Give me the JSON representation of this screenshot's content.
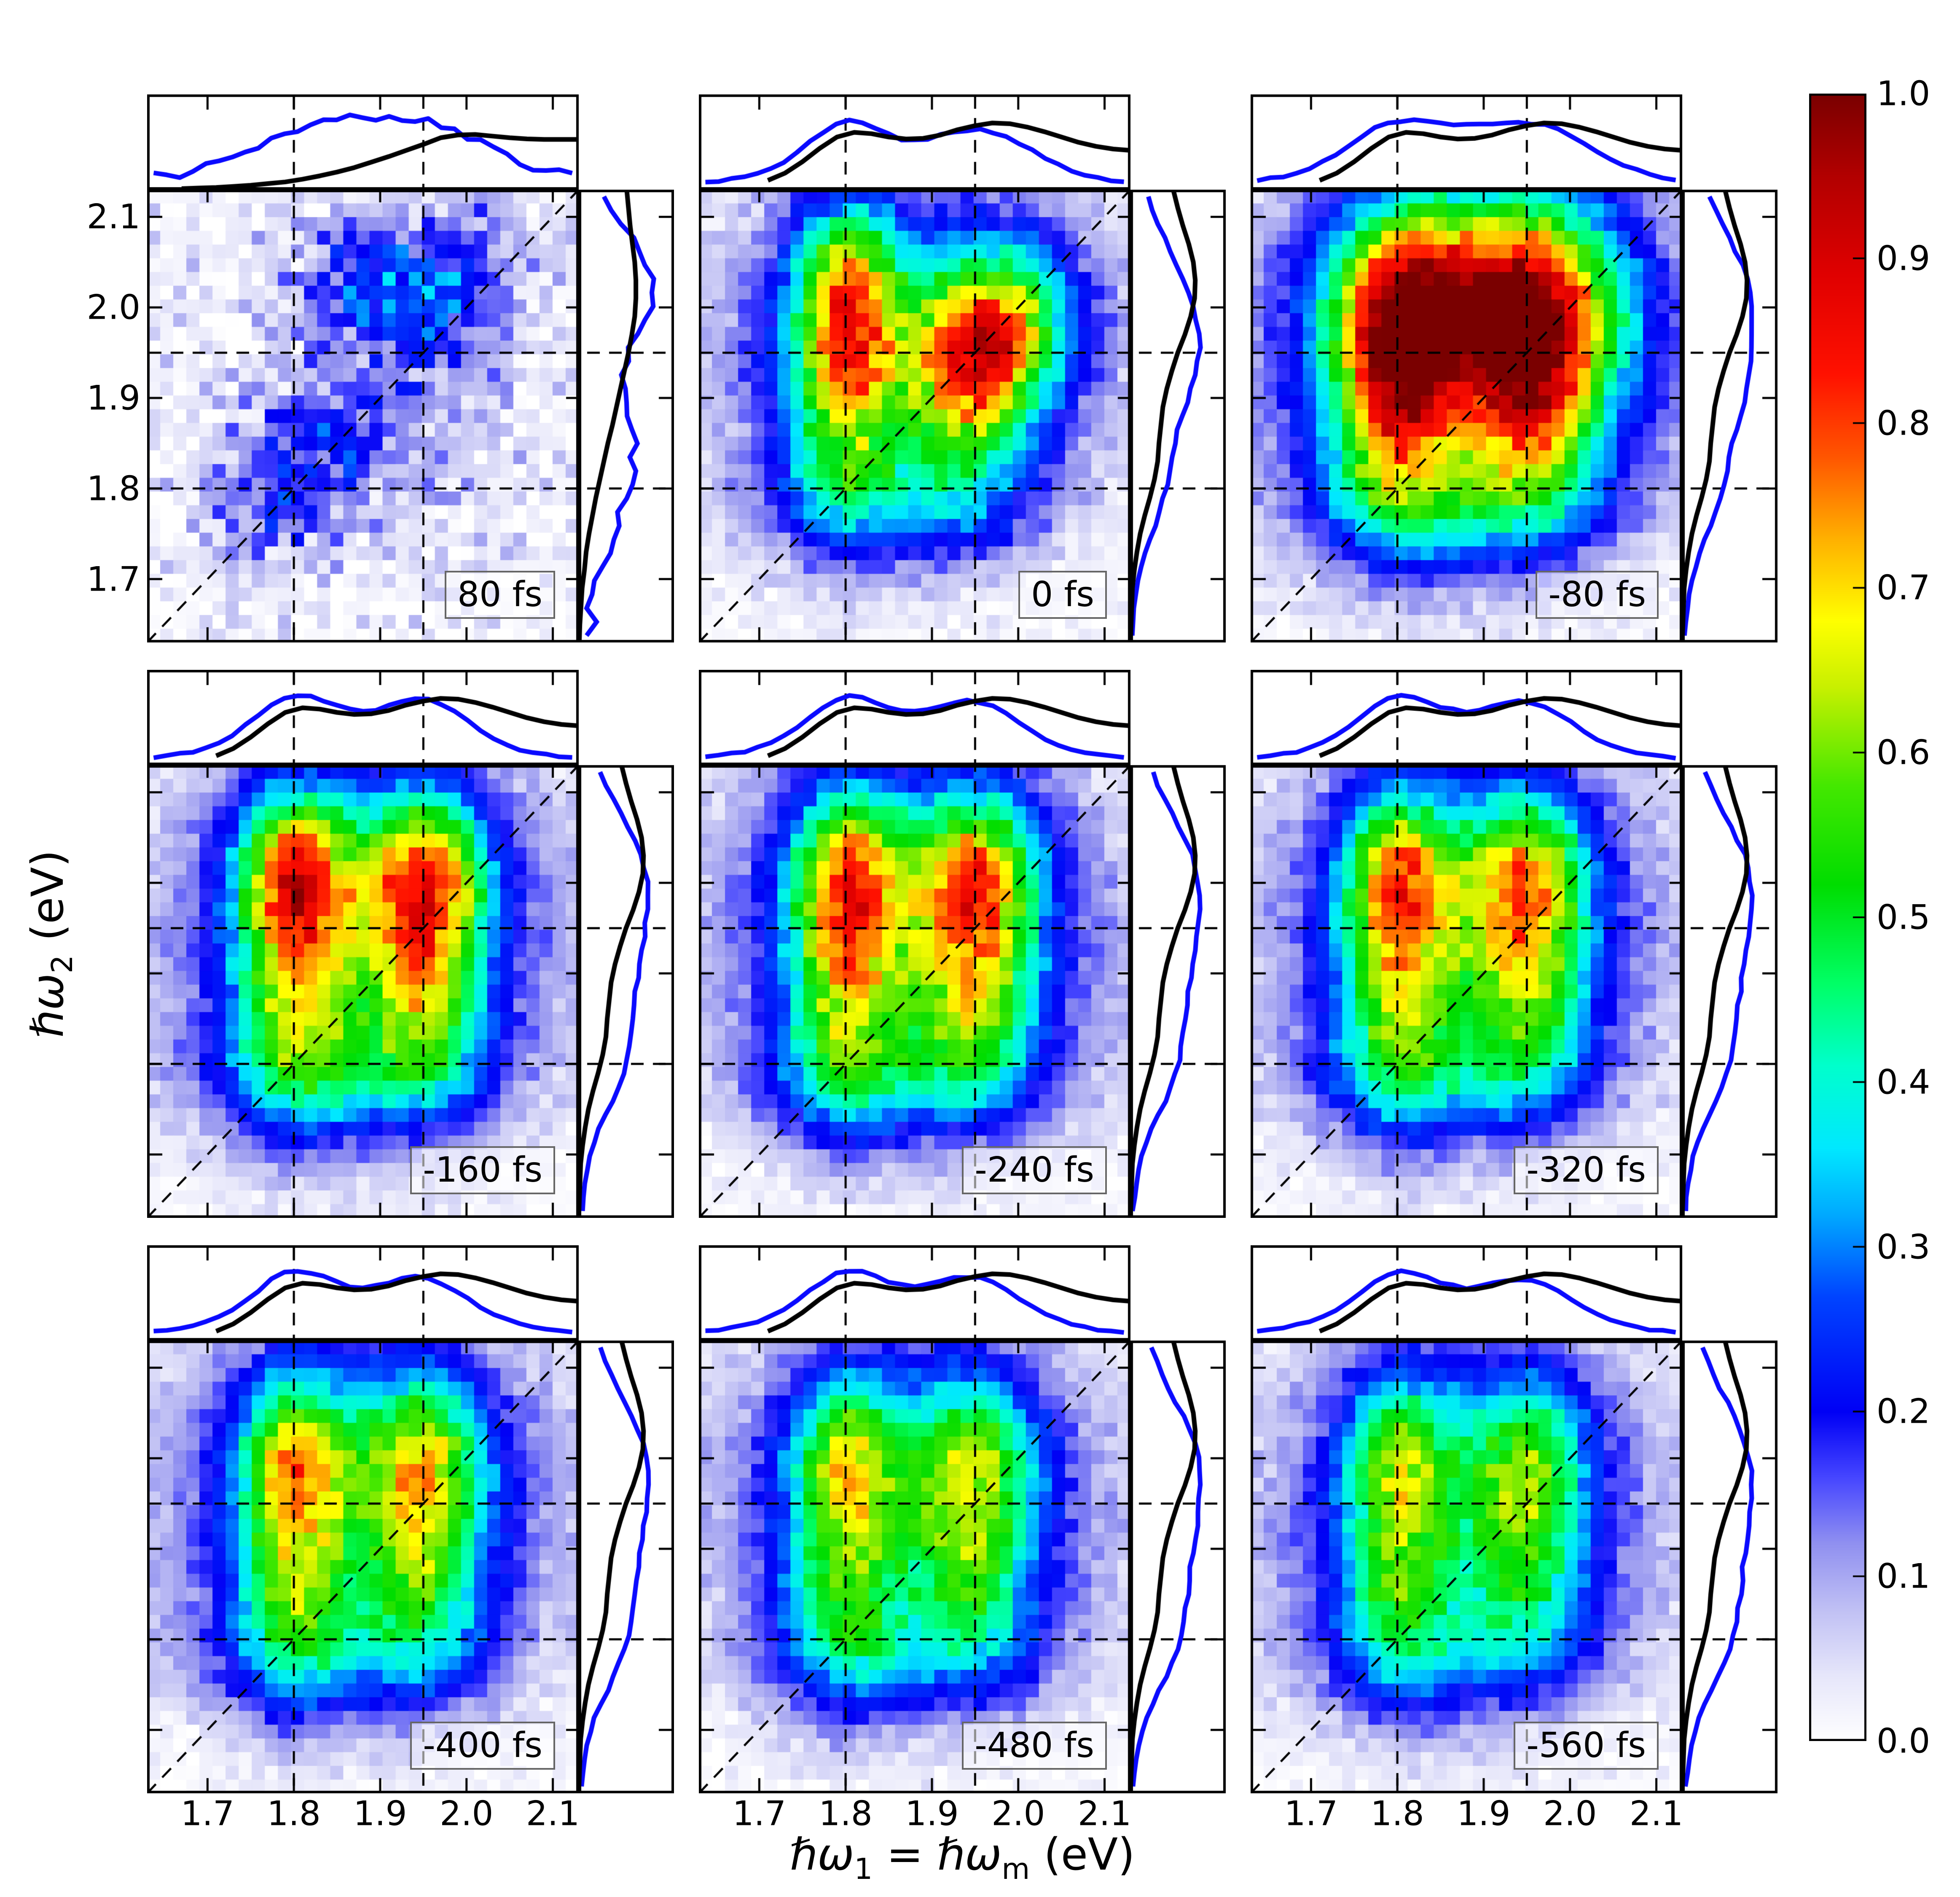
{
  "chart_data": {
    "type": "heatmap",
    "grid": "3x3",
    "xlabel_parts": {
      "pre": "ℏω",
      "sub1": "1",
      "mid": " = ℏω",
      "sub2": "m",
      "post": "  (eV)"
    },
    "ylabel_parts": {
      "pre": "ℏω",
      "sub1": "2",
      "post": "  (eV)"
    },
    "xlim": [
      1.63,
      2.13
    ],
    "ylim": [
      1.63,
      2.13
    ],
    "x_tick_values": [
      1.7,
      1.8,
      1.9,
      2.0,
      2.1
    ],
    "x_tick_labels": [
      "1.7",
      "1.8",
      "1.9",
      "2.0",
      "2.1"
    ],
    "y_tick_values": [
      2.1,
      2.0,
      1.9,
      1.8,
      1.7
    ],
    "y_tick_labels": [
      "2.1",
      "2.0",
      "1.9",
      "1.8",
      "1.7"
    ],
    "crosshair_values": [
      1.8,
      1.95
    ],
    "diagonal": "omega1-equals-omega2",
    "curve_colors": {
      "blue": "#0a0aff",
      "black": "#000000"
    },
    "dashed_color": "#000000",
    "colorbar": {
      "tick_values": [
        1.0,
        0.9,
        0.8,
        0.7,
        0.6,
        0.5,
        0.4,
        0.3,
        0.2,
        0.1,
        0.0
      ],
      "tick_labels": [
        "1.0",
        "0.9",
        "0.8",
        "0.7",
        "0.6",
        "0.5",
        "0.4",
        "0.3",
        "0.2",
        "0.1",
        "0.0"
      ],
      "colormap": [
        [
          0.0,
          "#ffffff"
        ],
        [
          0.04,
          "#e6e6fa"
        ],
        [
          0.08,
          "#c0c0f4"
        ],
        [
          0.12,
          "#9090f0"
        ],
        [
          0.16,
          "#4646ff"
        ],
        [
          0.2,
          "#0000f5"
        ],
        [
          0.27,
          "#0044ff"
        ],
        [
          0.32,
          "#00aaff"
        ],
        [
          0.36,
          "#00e8ff"
        ],
        [
          0.41,
          "#00ffcc"
        ],
        [
          0.46,
          "#00ff66"
        ],
        [
          0.52,
          "#00dd00"
        ],
        [
          0.58,
          "#44e800"
        ],
        [
          0.64,
          "#c8f000"
        ],
        [
          0.68,
          "#ffff00"
        ],
        [
          0.73,
          "#ffb000"
        ],
        [
          0.78,
          "#ff5500"
        ],
        [
          0.83,
          "#ff1100"
        ],
        [
          0.89,
          "#e00000"
        ],
        [
          0.95,
          "#b20000"
        ],
        [
          1.0,
          "#7a0000"
        ]
      ]
    },
    "curve_t0": 1.63,
    "curve_dt": 0.02,
    "reference_curves": {
      "top_A": [
        0.01,
        0.01,
        0.02,
        0.03,
        0.04,
        0.06,
        0.08,
        0.11,
        0.14,
        0.19,
        0.25,
        0.32,
        0.4,
        0.5,
        0.6,
        0.71,
        0.82,
        0.94,
        0.99,
        1.0,
        0.97,
        0.94,
        0.92,
        0.91,
        0.91,
        0.91
      ],
      "top_B": [
        0.0,
        0.01,
        0.03,
        0.07,
        0.14,
        0.25,
        0.42,
        0.62,
        0.79,
        0.86,
        0.84,
        0.79,
        0.76,
        0.77,
        0.82,
        0.9,
        0.96,
        1.0,
        0.99,
        0.94,
        0.87,
        0.79,
        0.71,
        0.65,
        0.61,
        0.59
      ],
      "right_A": [
        0.01,
        0.02,
        0.04,
        0.06,
        0.1,
        0.13,
        0.18,
        0.24,
        0.3,
        0.37,
        0.44,
        0.51,
        0.59,
        0.66,
        0.73,
        0.8,
        0.87,
        0.93,
        0.98,
        1.0,
        1.0,
        0.98,
        0.94,
        0.9,
        0.87,
        0.84
      ],
      "right_B": [
        0.0,
        0.01,
        0.02,
        0.03,
        0.06,
        0.1,
        0.15,
        0.22,
        0.3,
        0.37,
        0.42,
        0.44,
        0.47,
        0.5,
        0.56,
        0.64,
        0.73,
        0.84,
        0.93,
        0.99,
        1.0,
        0.97,
        0.9,
        0.81,
        0.73,
        0.66
      ]
    },
    "panels": [
      {
        "label": "80 fs",
        "row": 0,
        "col": 0,
        "noise": 0.07,
        "curve_noise": 0.05,
        "blue_scale": 0.8,
        "black_top": "A",
        "black_right": "A",
        "black_top_scale": 0.58,
        "black_right_scale": 0.6,
        "black_top_start": 1.66,
        "blobs": [
          [
            1.845,
            1.85,
            0.075,
            0.05,
            0.16
          ],
          [
            1.775,
            1.765,
            0.055,
            0.042,
            0.11
          ],
          [
            1.952,
            1.995,
            0.065,
            0.058,
            0.145
          ],
          [
            1.875,
            2.03,
            0.058,
            0.05,
            0.12
          ],
          [
            2.01,
            2.058,
            0.055,
            0.048,
            0.1
          ],
          [
            1.9,
            1.93,
            0.2,
            0.18,
            0.05
          ]
        ]
      },
      {
        "label": "0 fs",
        "row": 0,
        "col": 1,
        "noise": 0.035,
        "curve_noise": 0.012,
        "blue_scale": 0.73,
        "black_top": "B",
        "black_right": "B",
        "black_top_scale": 0.7,
        "black_right_scale": 0.68,
        "black_top_start": 1.7,
        "blobs": [
          [
            1.8,
            2.03,
            0.042,
            0.065,
            0.385
          ],
          [
            1.985,
            1.99,
            0.055,
            0.062,
            0.41
          ],
          [
            1.945,
            1.945,
            0.05,
            0.05,
            0.25
          ],
          [
            1.8,
            1.905,
            0.046,
            0.095,
            0.46
          ],
          [
            1.945,
            1.878,
            0.05,
            0.075,
            0.3
          ],
          [
            1.88,
            1.955,
            0.16,
            0.13,
            0.25
          ],
          [
            1.855,
            1.782,
            0.11,
            0.046,
            0.17
          ],
          [
            1.878,
            1.99,
            0.06,
            0.08,
            0.05
          ]
        ]
      },
      {
        "label": "-80 fs",
        "row": 0,
        "col": 2,
        "noise": 0.03,
        "curve_noise": 0.012,
        "blue_scale": 0.73,
        "black_top": "B",
        "black_right": "B",
        "black_top_scale": 0.7,
        "black_right_scale": 0.68,
        "black_top_start": 1.7,
        "blobs": [
          [
            1.805,
            2.005,
            0.056,
            0.078,
            0.46
          ],
          [
            1.963,
            2.008,
            0.07,
            0.082,
            0.48
          ],
          [
            1.882,
            2.0,
            0.095,
            0.085,
            0.3
          ],
          [
            1.8,
            1.88,
            0.05,
            0.09,
            0.45
          ],
          [
            1.958,
            1.882,
            0.05,
            0.082,
            0.42
          ],
          [
            1.88,
            1.95,
            0.175,
            0.145,
            0.3
          ],
          [
            1.862,
            1.785,
            0.112,
            0.048,
            0.22
          ]
        ]
      },
      {
        "label": "-160 fs",
        "row": 1,
        "col": 0,
        "noise": 0.03,
        "curve_noise": 0.012,
        "blue_scale": 0.73,
        "black_top": "B",
        "black_right": "B",
        "black_top_scale": 0.7,
        "black_right_scale": 0.68,
        "black_top_start": 1.7,
        "blobs": [
          [
            1.8,
            2.018,
            0.044,
            0.063,
            0.48
          ],
          [
            1.955,
            2.018,
            0.048,
            0.063,
            0.47
          ],
          [
            1.8,
            1.878,
            0.047,
            0.095,
            0.42
          ],
          [
            1.95,
            1.885,
            0.049,
            0.085,
            0.43
          ],
          [
            1.878,
            1.99,
            0.06,
            0.08,
            0.1
          ],
          [
            1.88,
            1.955,
            0.165,
            0.14,
            0.26
          ],
          [
            1.86,
            1.785,
            0.115,
            0.048,
            0.2
          ]
        ]
      },
      {
        "label": "-240 fs",
        "row": 1,
        "col": 1,
        "noise": 0.03,
        "curve_noise": 0.012,
        "blue_scale": 0.73,
        "black_top": "B",
        "black_right": "B",
        "black_top_scale": 0.7,
        "black_right_scale": 0.68,
        "black_top_start": 1.7,
        "blobs": [
          [
            1.8,
            2.018,
            0.044,
            0.063,
            0.44
          ],
          [
            1.955,
            2.018,
            0.048,
            0.063,
            0.43
          ],
          [
            1.8,
            1.878,
            0.047,
            0.095,
            0.42
          ],
          [
            1.95,
            1.885,
            0.049,
            0.085,
            0.41
          ],
          [
            1.878,
            1.99,
            0.06,
            0.08,
            0.1
          ],
          [
            1.88,
            1.955,
            0.165,
            0.14,
            0.26
          ],
          [
            1.86,
            1.785,
            0.115,
            0.048,
            0.19
          ]
        ]
      },
      {
        "label": "-320 fs",
        "row": 1,
        "col": 2,
        "noise": 0.03,
        "curve_noise": 0.012,
        "blue_scale": 0.73,
        "black_top": "B",
        "black_right": "B",
        "black_top_scale": 0.7,
        "black_right_scale": 0.68,
        "black_top_start": 1.7,
        "blobs": [
          [
            1.8,
            2.018,
            0.044,
            0.063,
            0.42
          ],
          [
            1.955,
            2.018,
            0.048,
            0.063,
            0.4
          ],
          [
            1.8,
            1.878,
            0.047,
            0.095,
            0.4
          ],
          [
            1.95,
            1.885,
            0.049,
            0.085,
            0.39
          ],
          [
            1.878,
            1.99,
            0.06,
            0.08,
            0.09
          ],
          [
            1.88,
            1.955,
            0.165,
            0.14,
            0.25
          ],
          [
            1.86,
            1.785,
            0.115,
            0.048,
            0.18
          ]
        ]
      },
      {
        "label": "-400 fs",
        "row": 2,
        "col": 0,
        "noise": 0.03,
        "curve_noise": 0.012,
        "blue_scale": 0.73,
        "black_top": "B",
        "black_right": "B",
        "black_top_scale": 0.7,
        "black_right_scale": 0.68,
        "black_top_start": 1.7,
        "blobs": [
          [
            1.8,
            2.015,
            0.044,
            0.06,
            0.35
          ],
          [
            1.955,
            2.015,
            0.048,
            0.06,
            0.33
          ],
          [
            1.8,
            1.878,
            0.047,
            0.095,
            0.4
          ],
          [
            1.95,
            1.885,
            0.049,
            0.085,
            0.36
          ],
          [
            1.878,
            1.99,
            0.06,
            0.08,
            0.08
          ],
          [
            1.88,
            1.955,
            0.165,
            0.14,
            0.25
          ],
          [
            1.86,
            1.785,
            0.115,
            0.048,
            0.16
          ]
        ]
      },
      {
        "label": "-480 fs",
        "row": 2,
        "col": 1,
        "noise": 0.03,
        "curve_noise": 0.012,
        "blue_scale": 0.73,
        "black_top": "B",
        "black_right": "B",
        "black_top_scale": 0.7,
        "black_right_scale": 0.68,
        "black_top_start": 1.7,
        "blobs": [
          [
            1.8,
            2.015,
            0.044,
            0.06,
            0.3
          ],
          [
            1.955,
            2.015,
            0.048,
            0.06,
            0.28
          ],
          [
            1.8,
            1.878,
            0.047,
            0.095,
            0.37
          ],
          [
            1.95,
            1.885,
            0.049,
            0.085,
            0.33
          ],
          [
            1.878,
            1.99,
            0.06,
            0.08,
            0.07
          ],
          [
            1.88,
            1.955,
            0.165,
            0.14,
            0.24
          ],
          [
            1.86,
            1.785,
            0.115,
            0.048,
            0.15
          ]
        ]
      },
      {
        "label": "-560 fs",
        "row": 2,
        "col": 2,
        "noise": 0.03,
        "curve_noise": 0.012,
        "blue_scale": 0.73,
        "black_top": "B",
        "black_right": "B",
        "black_top_scale": 0.7,
        "black_right_scale": 0.68,
        "black_top_start": 1.7,
        "blobs": [
          [
            1.8,
            2.015,
            0.044,
            0.06,
            0.27
          ],
          [
            1.955,
            2.015,
            0.048,
            0.06,
            0.26
          ],
          [
            1.8,
            1.878,
            0.047,
            0.095,
            0.36
          ],
          [
            1.95,
            1.885,
            0.049,
            0.085,
            0.31
          ],
          [
            1.878,
            1.99,
            0.06,
            0.08,
            0.06
          ],
          [
            1.88,
            1.955,
            0.165,
            0.14,
            0.23
          ],
          [
            1.86,
            1.785,
            0.115,
            0.048,
            0.14
          ]
        ]
      }
    ]
  }
}
